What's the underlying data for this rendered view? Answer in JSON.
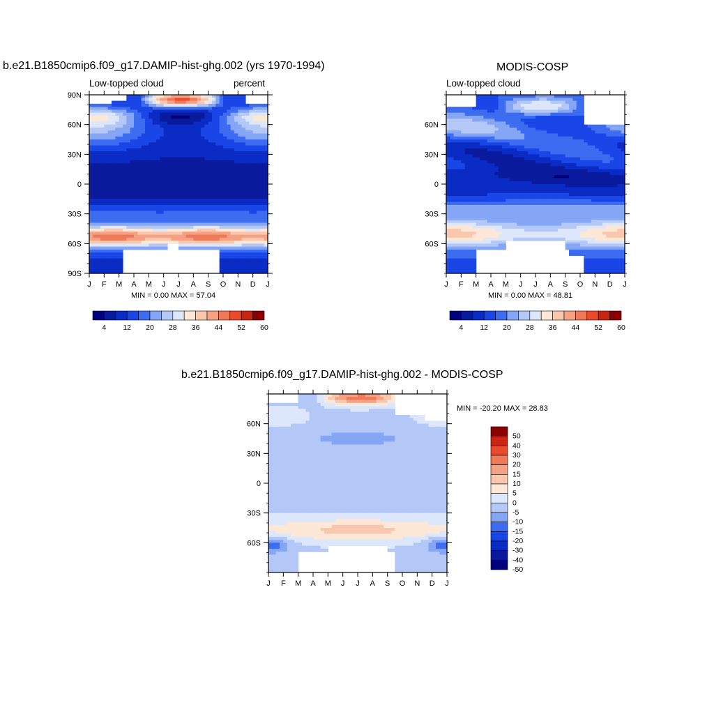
{
  "palette": {
    "abs": [
      "#00007f",
      "#0a1a9c",
      "#0a2bc4",
      "#1a46e8",
      "#3d6cf0",
      "#85a6f4",
      "#b3c8f7",
      "#dce7fb",
      "#fde8d8",
      "#f9c7ae",
      "#f4a184",
      "#ef7a5a",
      "#e94c2d",
      "#c82612",
      "#8b0000"
    ],
    "diff": [
      "#00007f",
      "#0a1a9c",
      "#0a2bc4",
      "#1a46e8",
      "#3d6cf0",
      "#85a6f4",
      "#b3c8f7",
      "#dce7fb",
      "#fde8d8",
      "#f9c7ae",
      "#f4a184",
      "#ef7a5a",
      "#e94c2d",
      "#c82612",
      "#8b0000"
    ]
  },
  "chart_data": [
    {
      "type": "heatmap",
      "title": "b.e21.B1850cmip6.f09_g17.DAMIP-hist-ghg.002 (yrs 1970-1994)",
      "left_label": "Low-topped cloud",
      "right_label": "percent",
      "x_tick_labels": [
        "J",
        "F",
        "M",
        "A",
        "M",
        "J",
        "J",
        "A",
        "S",
        "O",
        "N",
        "D",
        "J"
      ],
      "y_tick_labels": [
        "90N",
        "60N",
        "30N",
        "0",
        "30S",
        "60S",
        "90S"
      ],
      "y_range": [
        -90,
        90
      ],
      "min": "0.00",
      "max": "57.04",
      "min_max_text": "MIN =   0.00 MAX =  57.04",
      "colorbar_levels": [
        4,
        8,
        12,
        16,
        20,
        24,
        28,
        32,
        36,
        40,
        44,
        48,
        52,
        56,
        60
      ],
      "colorbar_tick_labels": [
        "4",
        "12",
        "20",
        "28",
        "36",
        "44",
        "52",
        "60"
      ]
    },
    {
      "type": "heatmap",
      "title": "MODIS-COSP",
      "left_label": "Low-topped cloud",
      "x_tick_labels": [
        "J",
        "F",
        "M",
        "A",
        "M",
        "J",
        "J",
        "A",
        "S",
        "O",
        "N",
        "D",
        "J"
      ],
      "y_tick_labels": [
        "60N",
        "30N",
        "0",
        "30S",
        "60S"
      ],
      "y_range": [
        -90,
        90
      ],
      "min": "0.00",
      "max": "48.81",
      "min_max_text": "MIN =   0.00 MAX =  48.81",
      "colorbar_levels": [
        4,
        8,
        12,
        16,
        20,
        24,
        28,
        32,
        36,
        40,
        44,
        48,
        52,
        56,
        60
      ],
      "colorbar_tick_labels": [
        "4",
        "12",
        "20",
        "28",
        "36",
        "44",
        "52",
        "60"
      ]
    },
    {
      "type": "heatmap",
      "title": "b.e21.B1850cmip6.f09_g17.DAMIP-hist-ghg.002 - MODIS-COSP",
      "x_tick_labels": [
        "J",
        "F",
        "M",
        "A",
        "M",
        "J",
        "J",
        "A",
        "S",
        "O",
        "N",
        "D",
        "J"
      ],
      "y_tick_labels": [
        "60N",
        "30N",
        "0",
        "30S",
        "60S"
      ],
      "y_range": [
        -90,
        90
      ],
      "min": "-20.20",
      "max": "28.83",
      "min_max_text": "MIN = -20.20 MAX =  28.83",
      "colorbar_levels": [
        -50,
        -40,
        -30,
        -20,
        -15,
        -10,
        -5,
        0,
        5,
        10,
        15,
        20,
        30,
        40,
        50
      ],
      "colorbar_tick_labels": [
        "50",
        "40",
        "30",
        "20",
        "15",
        "10",
        "5",
        "0",
        "-5",
        "-10",
        "-15",
        "-20",
        "-30",
        "-40",
        "-50"
      ]
    }
  ]
}
